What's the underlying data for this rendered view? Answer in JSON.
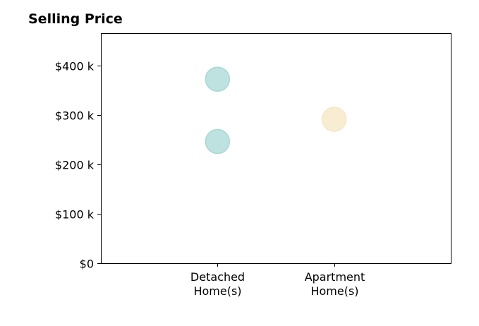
{
  "chart_data": {
    "type": "scatter",
    "title": "Selling Price",
    "xlabel": "",
    "ylabel": "",
    "categories": [
      [
        "Detached",
        "Home(s)"
      ],
      [
        "Apartment",
        "Home(s)"
      ]
    ],
    "y_ticks": [
      0,
      100000,
      200000,
      300000,
      400000
    ],
    "y_tick_labels": [
      "$0",
      "$100 k",
      "$200 k",
      "$300 k",
      "$400 k"
    ],
    "ylim": [
      0,
      465000
    ],
    "xlim": [
      -1,
      2
    ],
    "grid": false,
    "points": [
      {
        "category": "Detached Home(s)",
        "x": 0,
        "y": 372000,
        "color": "#a8d8d4"
      },
      {
        "category": "Detached Home(s)",
        "x": 0,
        "y": 246000,
        "color": "#a8d8d4"
      },
      {
        "category": "Apartment Home(s)",
        "x": 1,
        "y": 291000,
        "color": "#f6e6c4"
      }
    ]
  }
}
